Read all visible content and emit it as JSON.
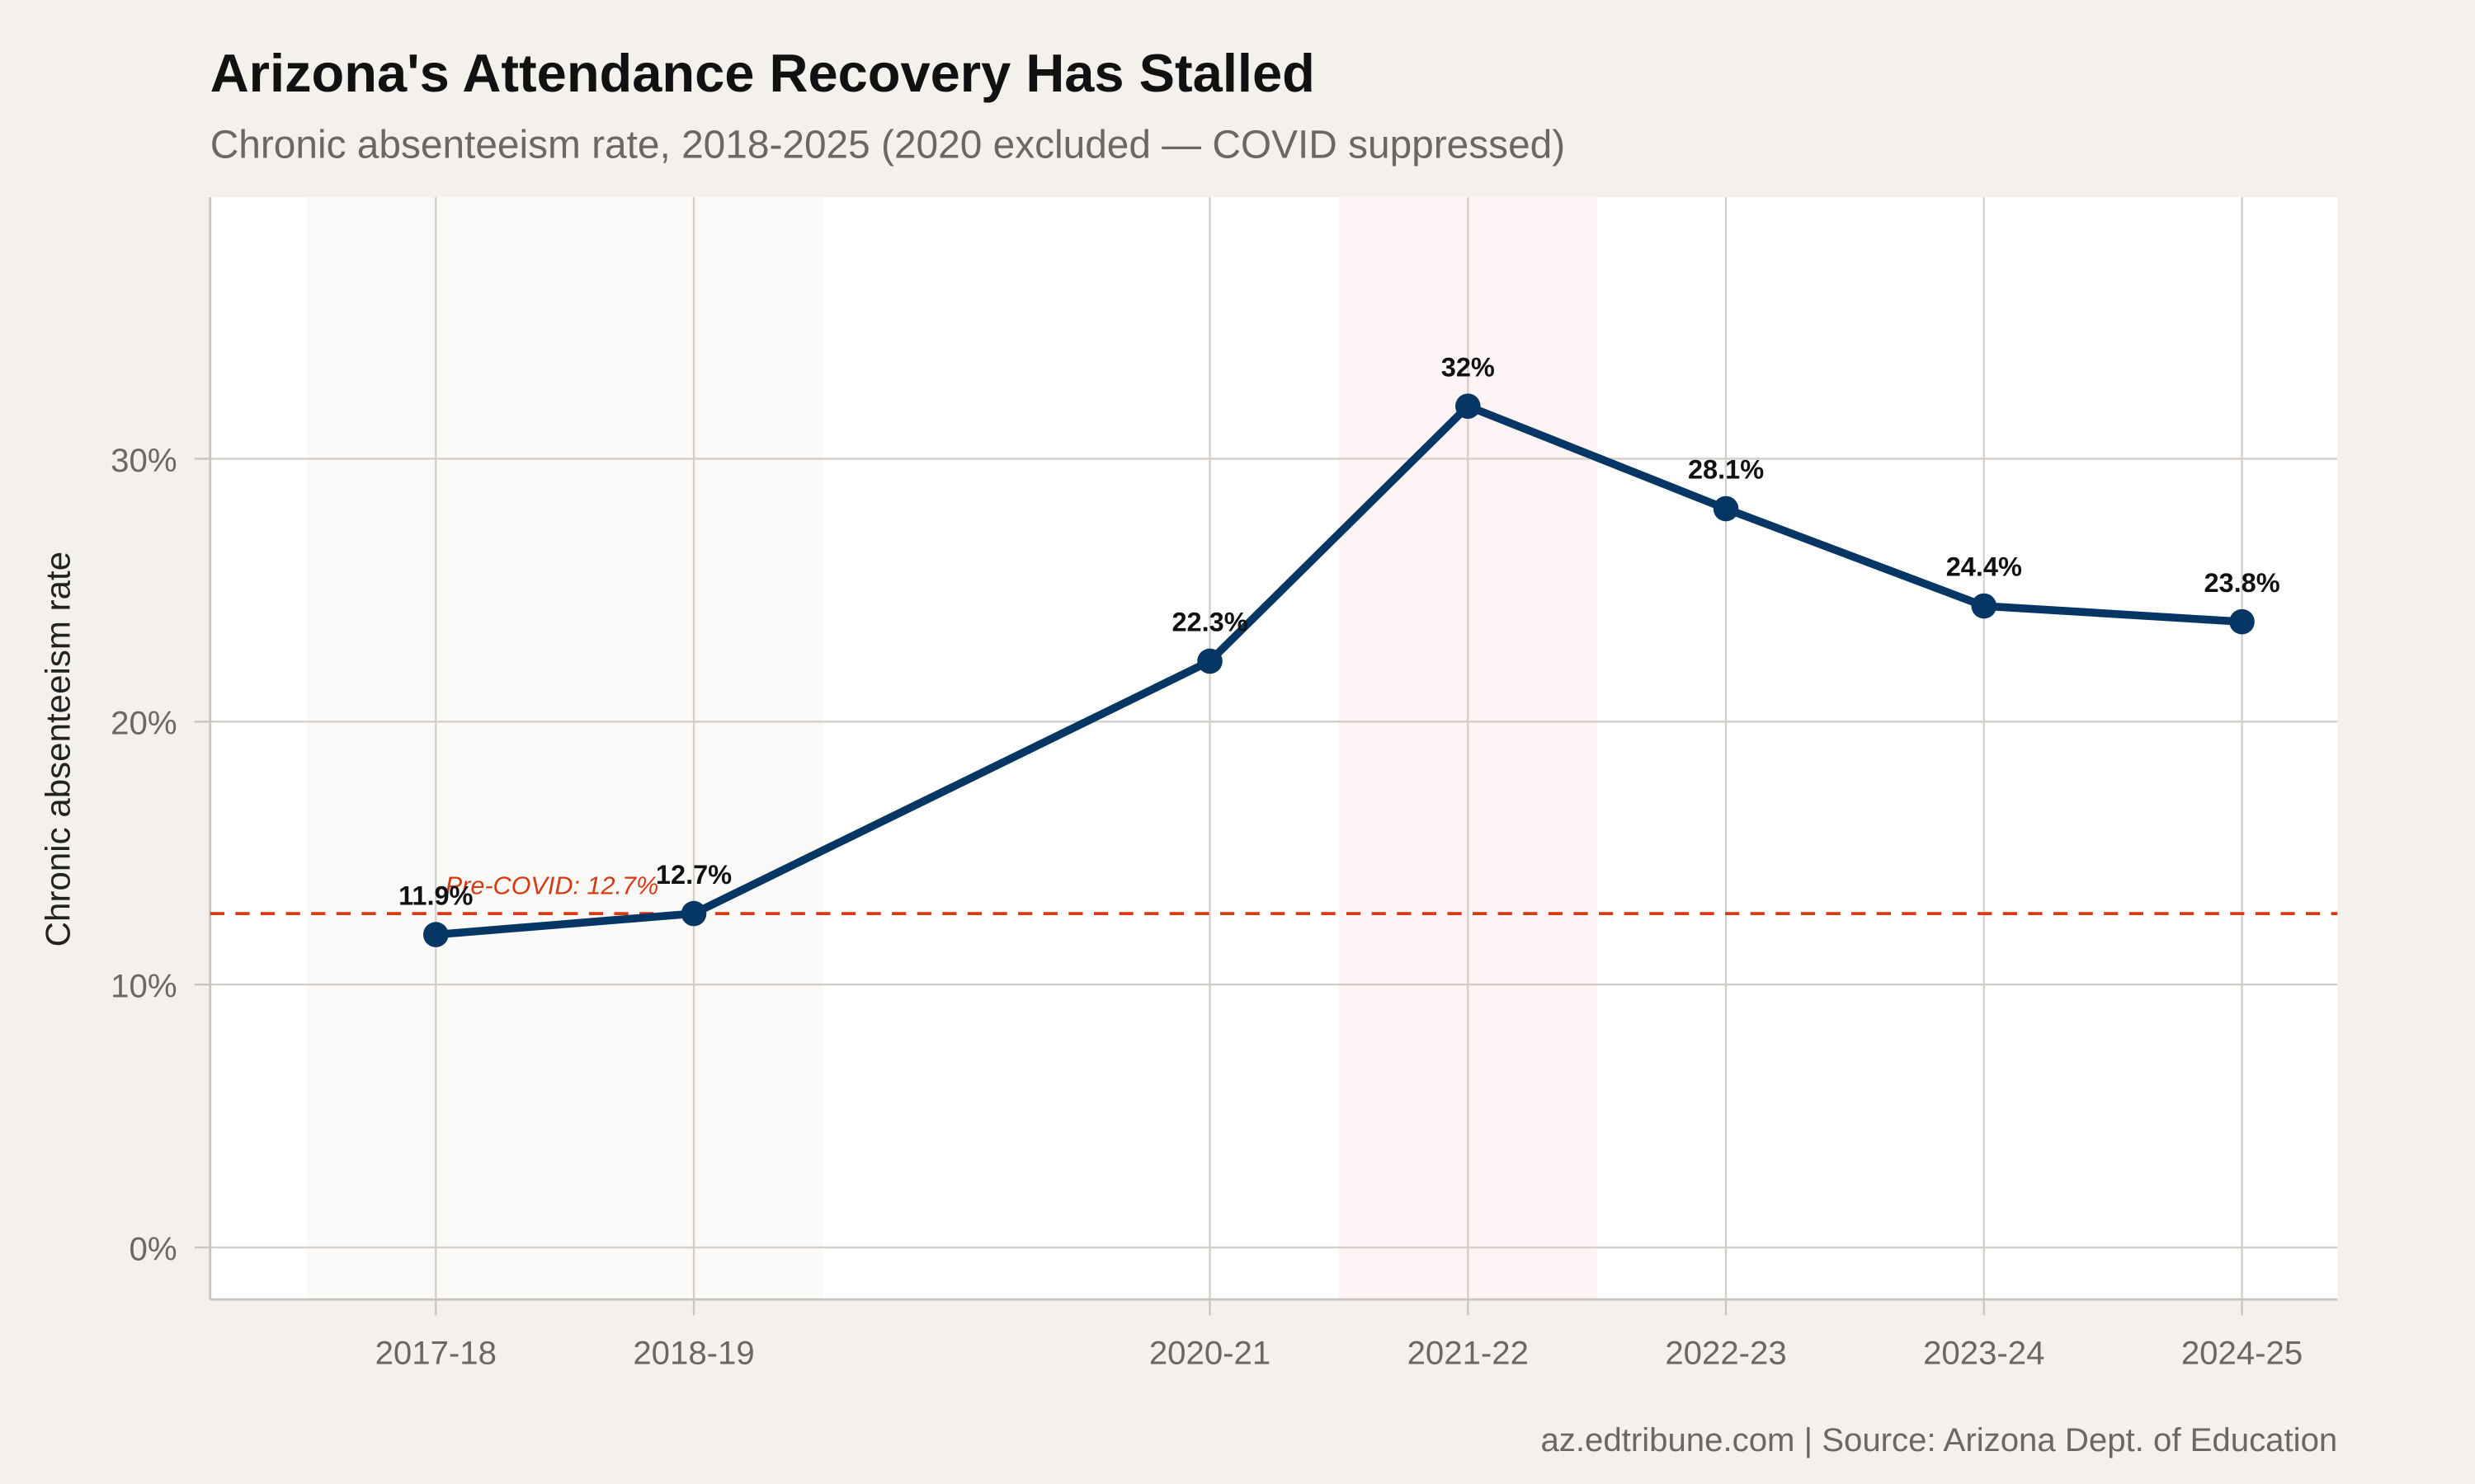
{
  "chart_data": {
    "type": "line",
    "title": "Arizona's Attendance Recovery Has Stalled",
    "subtitle": "Chronic absenteeism rate, 2018-2025 (2020 excluded — COVID suppressed)",
    "xlabel": "",
    "ylabel": "Chronic absenteeism rate",
    "caption": "az.edtribune.com | Source: Arizona Dept. of Education",
    "categories": [
      "2017-18",
      "2018-19",
      "2020-21",
      "2021-22",
      "2022-23",
      "2023-24",
      "2024-25"
    ],
    "school_year_end": [
      2018,
      2019,
      2021,
      2022,
      2023,
      2024,
      2025
    ],
    "values": [
      11.9,
      12.7,
      22.3,
      32.0,
      28.1,
      24.4,
      23.8
    ],
    "data_labels": [
      "11.9%",
      "12.7%",
      "22.3%",
      "32%",
      "28.1%",
      "24.4%",
      "23.8%"
    ],
    "yticks": [
      0,
      10,
      20,
      30
    ],
    "ytick_labels": [
      "0%",
      "10%",
      "20%",
      "30%"
    ],
    "ylim": [
      -2,
      40
    ],
    "grid": true,
    "reference_line": {
      "value": 12.7,
      "label": "Pre-COVID: 12.7%",
      "color": "#d63a12"
    },
    "shaded_periods": [
      {
        "from": "2017-18",
        "to": "2018-19",
        "color": "#fbfaf8"
      },
      {
        "from": "2021-22",
        "to": "2021-22",
        "color": "#fff4f5"
      }
    ],
    "line_color": "#063664",
    "background": "#f4f1ec"
  }
}
